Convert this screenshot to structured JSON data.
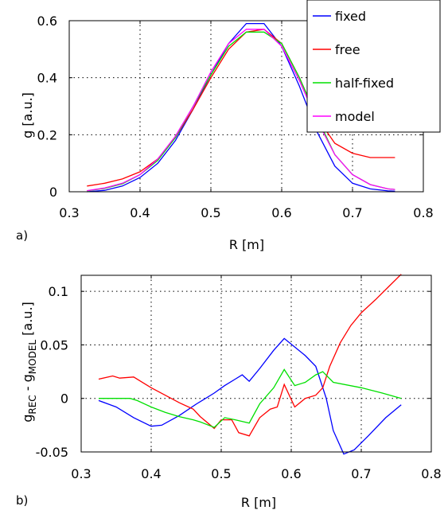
{
  "chart_data": [
    {
      "type": "line",
      "panel_label": "a)",
      "title": "",
      "xlabel": "R [m]",
      "ylabel": "g [a.u.]",
      "xlim": [
        0.3,
        0.8
      ],
      "ylim": [
        0,
        0.6
      ],
      "xticks": [
        0.3,
        0.4,
        0.5,
        0.6,
        0.7,
        0.8
      ],
      "xtick_labels": [
        "0.3",
        "0.4",
        "0.5",
        "0.6",
        "0.7",
        "0.8"
      ],
      "yticks": [
        0,
        0.2,
        0.4,
        0.6
      ],
      "ytick_labels": [
        "0",
        "0.2",
        "0.4",
        "0.6"
      ],
      "grid": true,
      "legend_position": "top-right",
      "series": [
        {
          "name": "fixed",
          "color": "#0000ff",
          "x": [
            0.325,
            0.35,
            0.375,
            0.4,
            0.425,
            0.45,
            0.475,
            0.5,
            0.525,
            0.55,
            0.575,
            0.6,
            0.625,
            0.65,
            0.675,
            0.7,
            0.725,
            0.75,
            0.76
          ],
          "y": [
            0.0,
            0.005,
            0.02,
            0.05,
            0.1,
            0.18,
            0.29,
            0.41,
            0.52,
            0.59,
            0.59,
            0.51,
            0.37,
            0.21,
            0.09,
            0.03,
            0.01,
            0.003,
            0.002
          ]
        },
        {
          "name": "free",
          "color": "#ff0000",
          "x": [
            0.325,
            0.35,
            0.375,
            0.4,
            0.425,
            0.45,
            0.475,
            0.5,
            0.525,
            0.55,
            0.575,
            0.6,
            0.625,
            0.65,
            0.675,
            0.7,
            0.725,
            0.75,
            0.76
          ],
          "y": [
            0.02,
            0.03,
            0.045,
            0.07,
            0.115,
            0.19,
            0.29,
            0.4,
            0.5,
            0.56,
            0.57,
            0.52,
            0.4,
            0.26,
            0.17,
            0.135,
            0.12,
            0.12,
            0.12
          ]
        },
        {
          "name": "half-fixed",
          "color": "#00e000",
          "x": [
            0.325,
            0.35,
            0.375,
            0.4,
            0.425,
            0.45,
            0.475,
            0.5,
            0.525,
            0.55,
            0.575,
            0.6,
            0.625,
            0.65,
            0.675,
            0.7,
            0.725,
            0.75,
            0.76
          ],
          "y": [
            0.003,
            0.012,
            0.028,
            0.06,
            0.11,
            0.19,
            0.3,
            0.41,
            0.51,
            0.56,
            0.56,
            0.52,
            0.4,
            0.26,
            0.13,
            0.06,
            0.025,
            0.01,
            0.008
          ]
        },
        {
          "name": "model",
          "color": "#ff00ff",
          "x": [
            0.325,
            0.35,
            0.375,
            0.4,
            0.425,
            0.45,
            0.475,
            0.5,
            0.525,
            0.55,
            0.575,
            0.6,
            0.625,
            0.65,
            0.675,
            0.7,
            0.725,
            0.75,
            0.76
          ],
          "y": [
            0.004,
            0.013,
            0.03,
            0.06,
            0.115,
            0.195,
            0.3,
            0.42,
            0.52,
            0.57,
            0.57,
            0.51,
            0.39,
            0.25,
            0.13,
            0.06,
            0.025,
            0.01,
            0.008
          ]
        }
      ]
    },
    {
      "type": "line",
      "panel_label": "b)",
      "title": "",
      "xlabel": "R [m]",
      "ylabel_main": "g",
      "ylabel_sub1": "REC",
      "ylabel_mid": " - g",
      "ylabel_sub2": "MODEL",
      "ylabel_unit": " [a.u.]",
      "xlim": [
        0.3,
        0.8
      ],
      "ylim": [
        -0.05,
        0.115
      ],
      "xticks": [
        0.3,
        0.4,
        0.5,
        0.6,
        0.7,
        0.8
      ],
      "xtick_labels": [
        "0.3",
        "0.4",
        "0.5",
        "0.6",
        "0.7",
        "0.8"
      ],
      "yticks": [
        -0.05,
        0,
        0.05,
        0.1
      ],
      "ytick_labels": [
        "-0.05",
        "0",
        "0.05",
        "0.1"
      ],
      "grid": true,
      "series": [
        {
          "name": "",
          "color": "#0000ff",
          "x": [
            0.325,
            0.35,
            0.375,
            0.4,
            0.415,
            0.44,
            0.465,
            0.49,
            0.505,
            0.52,
            0.53,
            0.54,
            0.555,
            0.575,
            0.59,
            0.605,
            0.62,
            0.635,
            0.65,
            0.66,
            0.675,
            0.69,
            0.71,
            0.735,
            0.757
          ],
          "y": [
            -0.002,
            -0.008,
            -0.018,
            -0.026,
            -0.025,
            -0.016,
            -0.005,
            0.005,
            0.012,
            0.018,
            0.022,
            0.016,
            0.028,
            0.045,
            0.056,
            0.048,
            0.04,
            0.03,
            0.0,
            -0.03,
            -0.052,
            -0.048,
            -0.035,
            -0.018,
            -0.006
          ]
        },
        {
          "name": "",
          "color": "#ff0000",
          "x": [
            0.325,
            0.345,
            0.355,
            0.375,
            0.39,
            0.4,
            0.42,
            0.44,
            0.46,
            0.47,
            0.49,
            0.5,
            0.515,
            0.525,
            0.54,
            0.555,
            0.57,
            0.58,
            0.59,
            0.605,
            0.62,
            0.635,
            0.645,
            0.655,
            0.67,
            0.685,
            0.7,
            0.72,
            0.74,
            0.757
          ],
          "y": [
            0.018,
            0.021,
            0.019,
            0.02,
            0.014,
            0.01,
            0.003,
            -0.004,
            -0.01,
            -0.017,
            -0.028,
            -0.02,
            -0.02,
            -0.032,
            -0.035,
            -0.018,
            -0.01,
            -0.008,
            0.013,
            -0.008,
            0.0,
            0.003,
            0.01,
            0.03,
            0.052,
            0.068,
            0.08,
            0.092,
            0.105,
            0.116
          ]
        },
        {
          "name": "",
          "color": "#00e000",
          "x": [
            0.325,
            0.345,
            0.37,
            0.38,
            0.4,
            0.42,
            0.44,
            0.46,
            0.47,
            0.49,
            0.505,
            0.52,
            0.54,
            0.555,
            0.575,
            0.59,
            0.605,
            0.62,
            0.635,
            0.645,
            0.66,
            0.7,
            0.73,
            0.757
          ],
          "y": [
            0.0,
            0.0,
            0.0,
            -0.002,
            -0.008,
            -0.013,
            -0.017,
            -0.02,
            -0.022,
            -0.027,
            -0.018,
            -0.02,
            -0.023,
            -0.005,
            0.01,
            0.027,
            0.012,
            0.015,
            0.022,
            0.025,
            0.015,
            0.01,
            0.005,
            0.0
          ]
        }
      ]
    }
  ]
}
